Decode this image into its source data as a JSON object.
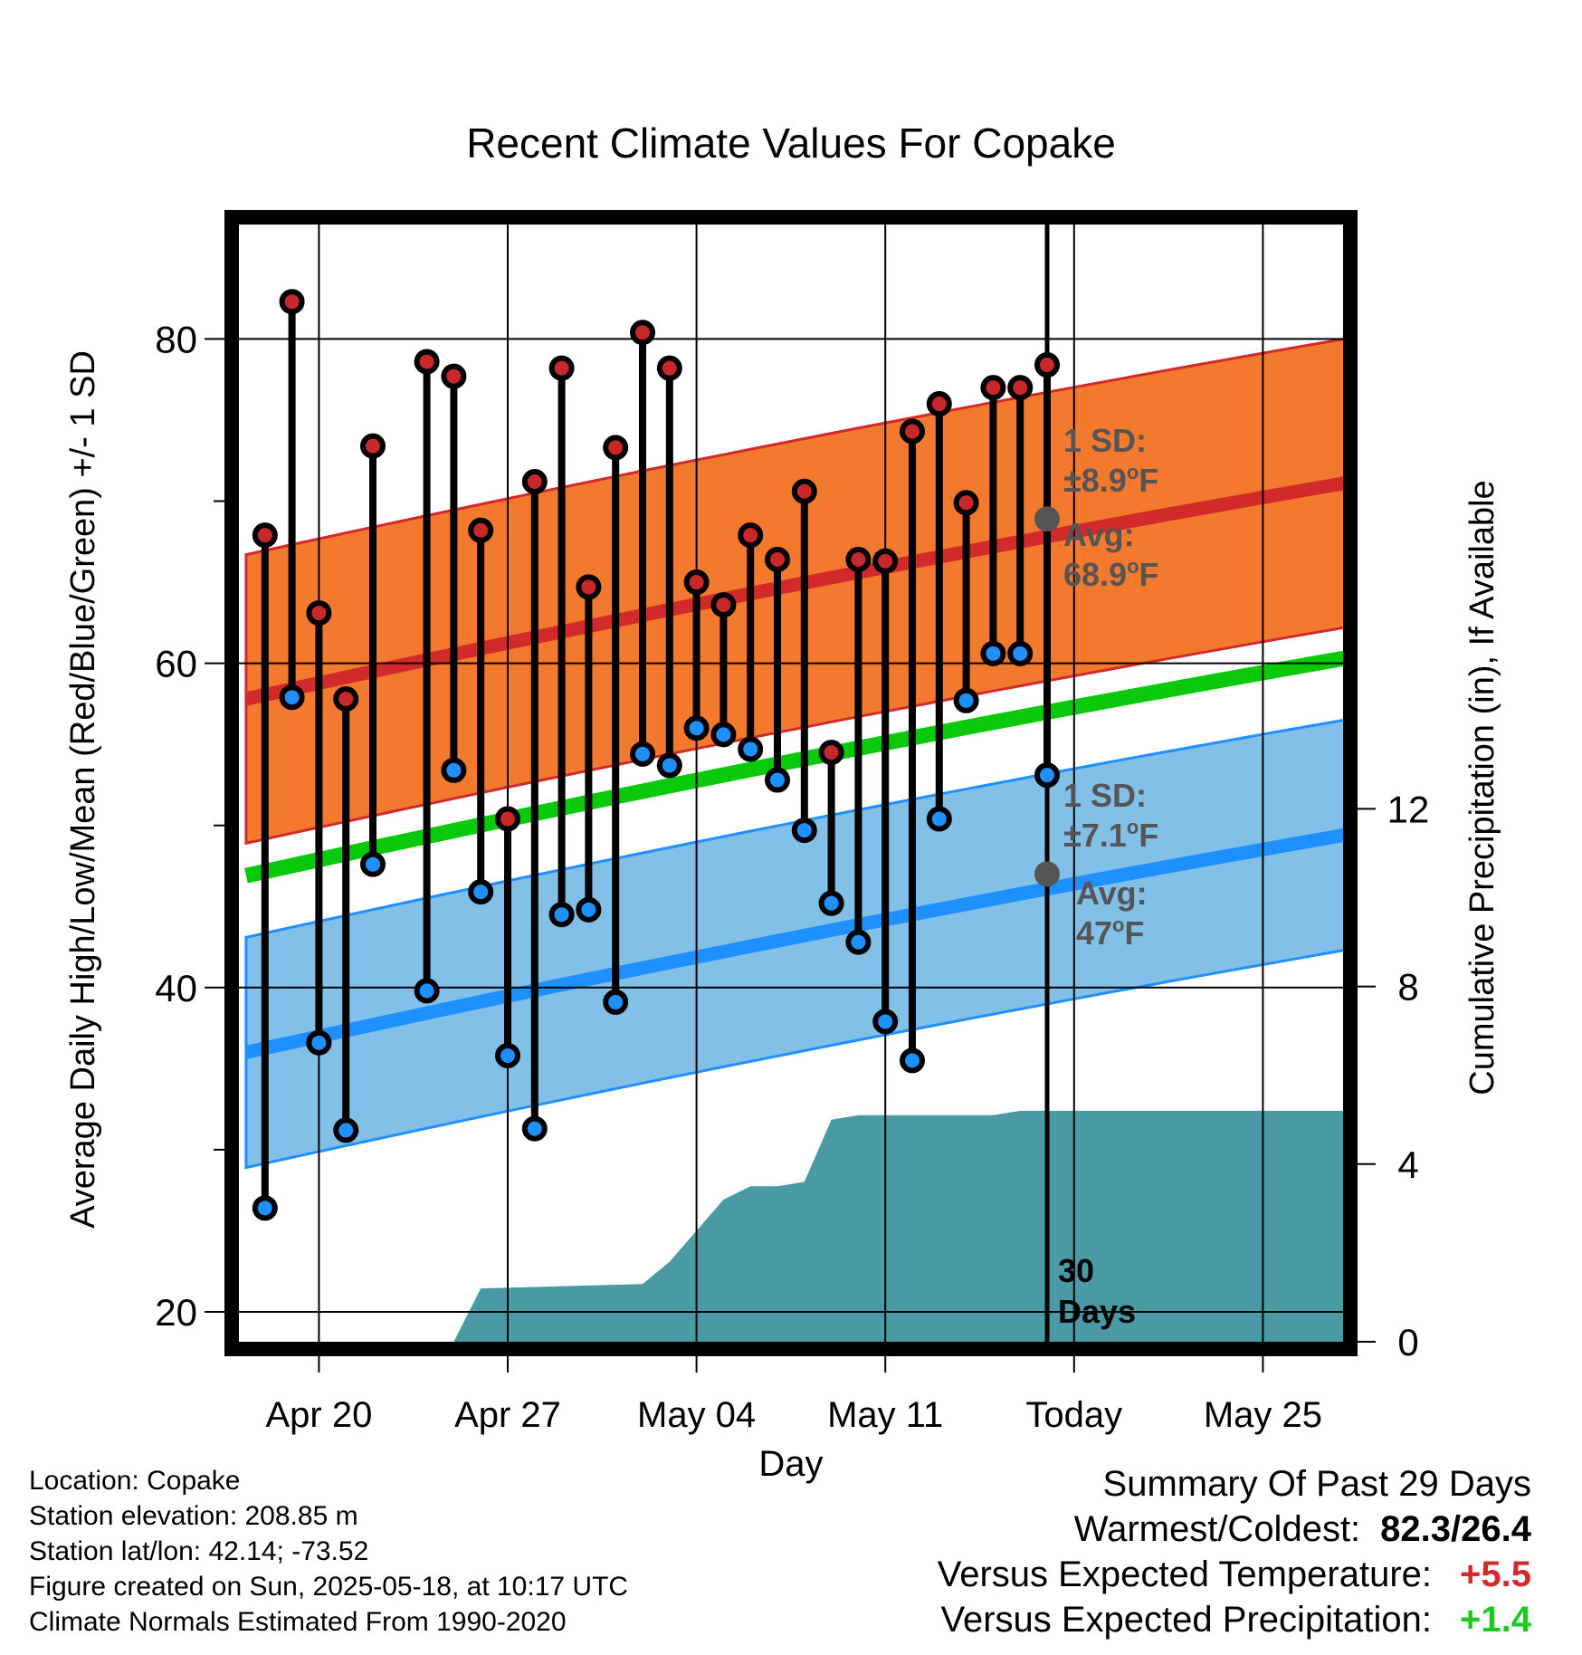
{
  "chart_data": {
    "type": "line",
    "title": "Recent Climate Values For Copake",
    "xlabel": "Day",
    "ylabel": "Average Daily High/Low/Mean (Red/Blue/Green) +/- 1 SD",
    "y2label": "Cumulative Precipitation (in), If Available",
    "x_tick_labels": [
      "Apr 20",
      "Apr 27",
      "May 04",
      "May 11",
      "Today",
      "May 25"
    ],
    "y_ticks": [
      "20",
      "40",
      "60",
      "80"
    ],
    "y2_ticks": [
      "0",
      "4",
      "8",
      "12"
    ],
    "ylim": [
      19,
      88
    ],
    "y2lim": [
      0,
      22
    ],
    "today_day": 30,
    "days_in_view": [
      17,
      42
    ],
    "daily": [
      {
        "day": 1,
        "high": 67.9,
        "low": 26.4
      },
      {
        "day": 2,
        "high": 82.3,
        "low": 57.9
      },
      {
        "day": 3,
        "high": 63.1,
        "low": 36.6
      },
      {
        "day": 4,
        "high": 57.8,
        "low": 31.2
      },
      {
        "day": 5,
        "high": 73.4,
        "low": 47.6
      },
      {
        "day": 7,
        "high": 78.6,
        "low": 39.8
      },
      {
        "day": 8,
        "high": 77.7,
        "low": 53.4
      },
      {
        "day": 9,
        "high": 68.2,
        "low": 45.9
      },
      {
        "day": 10,
        "high": 50.4,
        "low": 35.8
      },
      {
        "day": 11,
        "high": 71.2,
        "low": 31.3
      },
      {
        "day": 12,
        "high": 78.2,
        "low": 44.5
      },
      {
        "day": 13,
        "high": 64.7,
        "low": 44.8
      },
      {
        "day": 14,
        "high": 73.3,
        "low": 39.1
      },
      {
        "day": 15,
        "high": 80.4,
        "low": 54.4
      },
      {
        "day": 16,
        "high": 78.2,
        "low": 53.7
      },
      {
        "day": 17,
        "high": 65.0,
        "low": 56.0
      },
      {
        "day": 18,
        "high": 63.6,
        "low": 55.6
      },
      {
        "day": 19,
        "high": 67.9,
        "low": 54.7
      },
      {
        "day": 20,
        "high": 66.4,
        "low": 52.8
      },
      {
        "day": 21,
        "high": 70.6,
        "low": 49.7
      },
      {
        "day": 22,
        "high": 54.5,
        "low": 45.2
      },
      {
        "day": 23,
        "high": 66.4,
        "low": 42.8
      },
      {
        "day": 24,
        "high": 66.3,
        "low": 37.9
      },
      {
        "day": 25,
        "high": 74.3,
        "low": 35.5
      },
      {
        "day": 26,
        "high": 76.0,
        "low": 50.4
      },
      {
        "day": 27,
        "high": 69.9,
        "low": 57.7
      },
      {
        "day": 28,
        "high": 77.0,
        "low": 60.6
      },
      {
        "day": 29,
        "high": 77.0,
        "low": 60.6
      },
      {
        "day": 30,
        "high": 78.4,
        "low": 53.1
      }
    ],
    "normals": {
      "days": [
        0.3,
        41.7
      ],
      "high_mean": [
        57.8,
        71.3
      ],
      "high_upper": [
        66.7,
        80.2
      ],
      "high_lower": [
        48.9,
        62.4
      ],
      "high_sd": 8.9,
      "low_mean": [
        36.0,
        49.6
      ],
      "low_upper": [
        43.1,
        56.7
      ],
      "low_lower": [
        28.9,
        42.5
      ],
      "low_sd": 7.1,
      "daily_mean": [
        46.9,
        60.5
      ]
    },
    "precip_cumulative": {
      "days": [
        8,
        9,
        15,
        16,
        17,
        18,
        19,
        20,
        21,
        22,
        23,
        28,
        29,
        30,
        41.7
      ],
      "values": [
        0,
        1.2,
        1.3,
        1.8,
        2.5,
        3.2,
        3.5,
        3.5,
        3.6,
        5.0,
        5.1,
        5.1,
        5.2,
        5.2,
        5.2
      ]
    },
    "annotations": {
      "high_sd_label": "1 SD:",
      "high_sd_value": "±8.9",
      "high_avg_label": "Avg:",
      "high_avg_value": "68.9",
      "low_sd_label": "1 SD:",
      "low_sd_value": "±7.1",
      "low_avg_label": "Avg:",
      "low_avg_value": "47",
      "degree_unit": "o",
      "unit_letter": "F",
      "days_count": "30",
      "days_word": "Days"
    },
    "colors": {
      "high_band": "#f2792d",
      "high_mean": "#d22a2a",
      "low_band": "#82c0e8",
      "low_mean": "#1e90ff",
      "daily_mean": "#0ac80a",
      "precip": "#4a9aa5",
      "high_dot": "#c8282a",
      "low_dot": "#1e90ff",
      "annotation": "#555555"
    }
  },
  "footer": {
    "location": "Location: Copake",
    "elevation": "Station elevation: 208.85 m",
    "latlon": "Station lat/lon: 42.14; -73.52",
    "created": "Figure created on Sun, 2025-05-18, at 10:17 UTC",
    "normals": "Climate Normals Estimated From 1990-2020"
  },
  "summary": {
    "title": "Summary Of Past 29 Days",
    "warmest_label": "Warmest/Coldest:",
    "warmest_value": "82.3/26.4",
    "temp_label": "Versus Expected Temperature:",
    "temp_value": "+5.5",
    "temp_color": "#d22a2a",
    "precip_label": "Versus Expected Precipitation:",
    "precip_value": "+1.4",
    "precip_color": "#1ec81e"
  }
}
